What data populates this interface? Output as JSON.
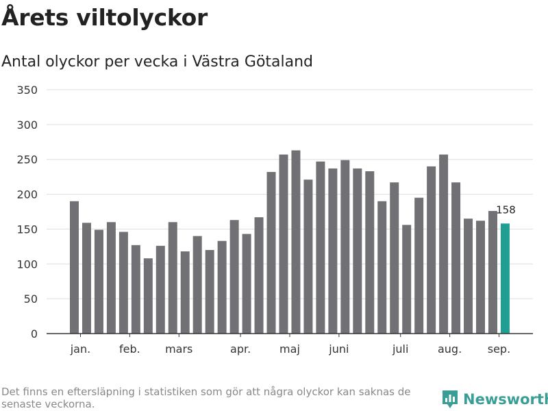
{
  "header": {
    "title": "Årets viltolyckor",
    "subtitle": "Antal olyckor per vecka i Västra Götaland"
  },
  "footer": {
    "note": "Det finns en eftersläpning i statistiken som gör att några olyckor kan saknas de senaste veckorna.",
    "brand": "Newsworthy",
    "brand_icon": "bar-chart-pin-icon"
  },
  "colors": {
    "bar": "#717074",
    "highlight": "#1f9f94",
    "grid": "#dddddd",
    "axis": "#333333",
    "brand": "#3a9e96"
  },
  "chart_data": {
    "type": "bar",
    "title": "Antal olyckor per vecka i Västra Götaland",
    "xlabel": "",
    "ylabel": "",
    "ylim": [
      0,
      350
    ],
    "yticks": [
      0,
      50,
      100,
      150,
      200,
      250,
      300,
      350
    ],
    "grid": true,
    "values": [
      190,
      159,
      149,
      160,
      146,
      127,
      108,
      126,
      160,
      118,
      140,
      120,
      133,
      163,
      143,
      167,
      232,
      257,
      263,
      221,
      247,
      237,
      249,
      237,
      233,
      190,
      217,
      156,
      195,
      240,
      257,
      217,
      165,
      162,
      176,
      158
    ],
    "highlight_index": 35,
    "highlight_label": "158",
    "month_labels": [
      {
        "label": "jan.",
        "index": 0.5
      },
      {
        "label": "feb.",
        "index": 4.5
      },
      {
        "label": "mars",
        "index": 8.5
      },
      {
        "label": "apr.",
        "index": 13.5
      },
      {
        "label": "maj",
        "index": 17.5
      },
      {
        "label": "juni",
        "index": 21.5
      },
      {
        "label": "juli",
        "index": 26.5
      },
      {
        "label": "aug.",
        "index": 30.5
      },
      {
        "label": "sep.",
        "index": 34.5
      }
    ]
  }
}
